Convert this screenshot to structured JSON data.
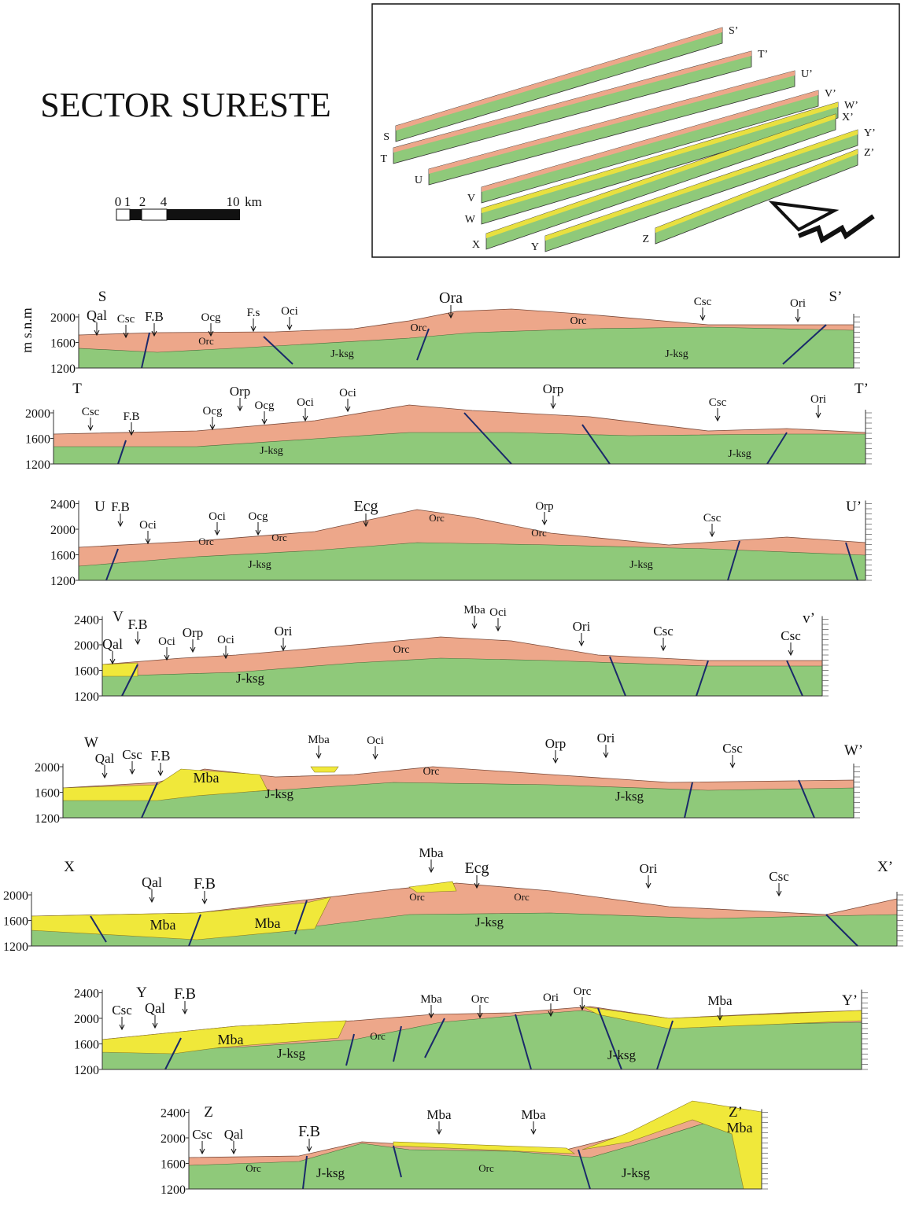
{
  "title": "SECTOR SURESTE",
  "scale_bar": {
    "ticks": [
      "0",
      "1",
      "2",
      "4",
      "10"
    ],
    "unit": "km"
  },
  "axis_label": "m s.n.m",
  "inset": {
    "labels": [
      [
        "S",
        "S’"
      ],
      [
        "T",
        "T’"
      ],
      [
        "U",
        "U’"
      ],
      [
        "V",
        "V’"
      ],
      [
        "W",
        "W’"
      ],
      [
        "X",
        "X’"
      ],
      [
        "Y",
        "Y’"
      ],
      [
        "Z",
        "Z’"
      ]
    ]
  },
  "sections": [
    {
      "start": "S",
      "end": "S’",
      "yticks": [
        "2000",
        "1600",
        "1200"
      ],
      "labels": [
        "Qal",
        "Csc",
        "F.B",
        "Ocg",
        "F.s",
        "Oci",
        "Ora",
        "Orc",
        "Orc",
        "Orc",
        "Csc",
        "Ori",
        "J-ksg",
        "J-ksg"
      ]
    },
    {
      "start": "T",
      "end": "T’",
      "yticks": [
        "2000",
        "1600",
        "1200"
      ],
      "labels": [
        "Csc",
        "F.B",
        "Ocg",
        "Orp",
        "Ocg",
        "Oci",
        "Oci",
        "Orp",
        "Csc",
        "Ori",
        "J-ksg",
        "J-ksg"
      ]
    },
    {
      "start": "U",
      "end": "U’",
      "yticks": [
        "2400",
        "2000",
        "1600",
        "1200"
      ],
      "labels": [
        "F.B",
        "Oci",
        "Oci",
        "Ocg",
        "Ecg",
        "Orc",
        "Orc",
        "Orc",
        "Orp",
        "Orc",
        "Csc",
        "J-ksg",
        "J-ksg"
      ]
    },
    {
      "start": "V",
      "end": "v’",
      "yticks": [
        "2400",
        "2000",
        "1600",
        "1200"
      ],
      "labels": [
        "F.B",
        "Qal",
        "Oci",
        "Orp",
        "Oci",
        "Ori",
        "Mba",
        "Oci",
        "Ori",
        "Csc",
        "Csc",
        "Orc",
        "J-ksg"
      ]
    },
    {
      "start": "W",
      "end": "W’",
      "yticks": [
        "2000",
        "1600",
        "1200"
      ],
      "labels": [
        "Qal",
        "Csc",
        "F.B",
        "Mba",
        "Oci",
        "Orp",
        "Ori",
        "Csc",
        "Mba",
        "Orc",
        "J-ksg",
        "J-ksg"
      ]
    },
    {
      "start": "X",
      "end": "X’",
      "yticks": [
        "2000",
        "1600",
        "1200"
      ],
      "labels": [
        "Qal",
        "F.B",
        "Mba",
        "Ecg",
        "Ori",
        "Csc",
        "Orc",
        "Orc",
        "Mba",
        "Mba",
        "J-ksg"
      ]
    },
    {
      "start": "Y",
      "end": "Y’",
      "yticks": [
        "2400",
        "2000",
        "1600",
        "1200"
      ],
      "labels": [
        "Csc",
        "Qal",
        "F.B",
        "Mba",
        "Orc",
        "Ori",
        "Orc",
        "Mba",
        "Mba",
        "Orc",
        "J-ksg",
        "J-ksg"
      ]
    },
    {
      "start": "Z",
      "end": "Z’",
      "yticks": [
        "2400",
        "2000",
        "1600",
        "1200"
      ],
      "labels": [
        "Csc",
        "Qal",
        "F.B",
        "Mba",
        "Mba",
        "Mba",
        "Orc",
        "Orc",
        "J-ksg",
        "J-ksg"
      ]
    }
  ]
}
